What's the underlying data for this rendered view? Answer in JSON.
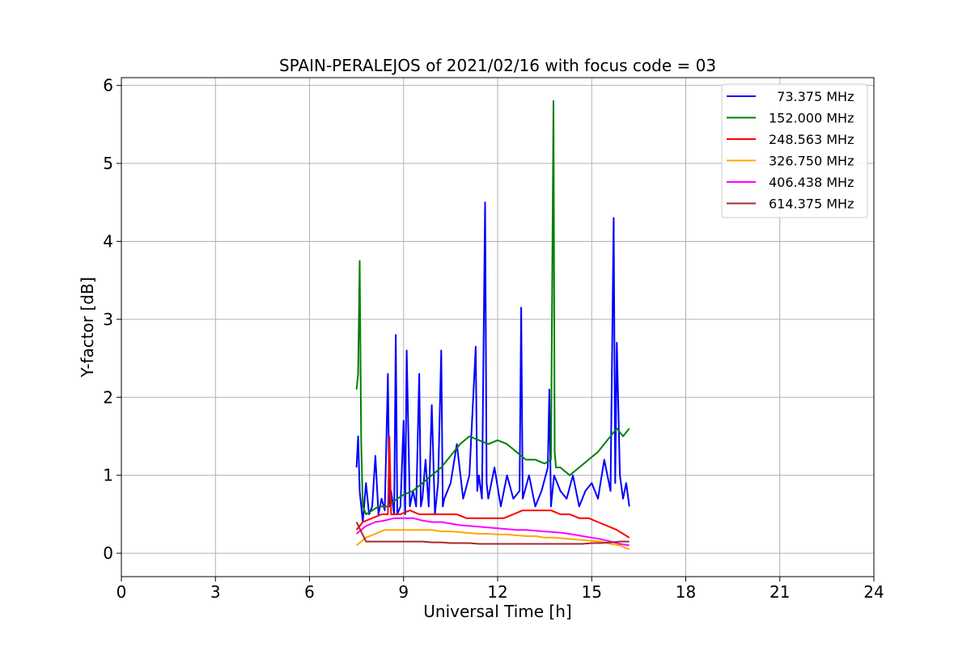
{
  "chart_data": {
    "type": "line",
    "title": "SPAIN-PERALEJOS of 2021/02/16 with focus code = 03",
    "xlabel": "Universal Time [h]",
    "ylabel": "Y-factor [dB]",
    "xlim": [
      0,
      24
    ],
    "ylim": [
      -0.3,
      6.1
    ],
    "xticks": [
      0,
      3,
      6,
      9,
      12,
      15,
      18,
      21,
      24
    ],
    "yticks": [
      0,
      1,
      2,
      3,
      4,
      5,
      6
    ],
    "grid": true,
    "legend_position": "top-right",
    "series": [
      {
        "name": "  73.375 MHz",
        "color": "#0000ff",
        "x": [
          7.5,
          7.55,
          7.6,
          7.7,
          7.8,
          7.9,
          8.0,
          8.1,
          8.2,
          8.3,
          8.4,
          8.5,
          8.55,
          8.6,
          8.7,
          8.75,
          8.8,
          8.9,
          9.0,
          9.05,
          9.1,
          9.2,
          9.3,
          9.4,
          9.5,
          9.55,
          9.6,
          9.7,
          9.8,
          9.9,
          10.0,
          10.1,
          10.2,
          10.25,
          10.3,
          10.5,
          10.7,
          10.9,
          11.1,
          11.3,
          11.35,
          11.4,
          11.5,
          11.6,
          11.65,
          11.7,
          11.9,
          12.1,
          12.3,
          12.5,
          12.7,
          12.75,
          12.8,
          13.0,
          13.2,
          13.4,
          13.6,
          13.65,
          13.7,
          13.8,
          14.0,
          14.2,
          14.4,
          14.6,
          14.8,
          15.0,
          15.2,
          15.4,
          15.6,
          15.7,
          15.75,
          15.8,
          15.9,
          16.0,
          16.1,
          16.2
        ],
        "values": [
          1.1,
          1.5,
          0.8,
          0.4,
          0.9,
          0.5,
          0.6,
          1.25,
          0.5,
          0.7,
          0.55,
          2.3,
          0.6,
          0.8,
          0.5,
          2.8,
          0.5,
          0.6,
          1.7,
          0.5,
          2.6,
          0.6,
          0.8,
          0.6,
          2.3,
          0.6,
          0.7,
          1.2,
          0.6,
          1.9,
          0.5,
          0.9,
          2.6,
          0.6,
          0.7,
          0.9,
          1.4,
          0.7,
          1.0,
          2.65,
          0.8,
          1.0,
          0.7,
          4.5,
          0.9,
          0.7,
          1.1,
          0.6,
          1.0,
          0.7,
          0.8,
          3.15,
          0.7,
          1.0,
          0.6,
          0.8,
          1.1,
          2.1,
          0.6,
          1.0,
          0.8,
          0.7,
          1.0,
          0.6,
          0.8,
          0.9,
          0.7,
          1.2,
          0.8,
          4.3,
          0.9,
          2.7,
          1.0,
          0.7,
          0.9,
          0.6
        ]
      },
      {
        "name": "152.000 MHz",
        "color": "#008000",
        "x": [
          7.5,
          7.55,
          7.6,
          7.65,
          7.7,
          7.8,
          8.0,
          8.2,
          8.5,
          8.8,
          9.0,
          9.3,
          9.6,
          9.9,
          10.2,
          10.5,
          10.8,
          11.1,
          11.4,
          11.7,
          12.0,
          12.3,
          12.6,
          12.9,
          13.2,
          13.5,
          13.7,
          13.78,
          13.82,
          13.86,
          14.0,
          14.3,
          14.6,
          14.9,
          15.2,
          15.5,
          15.8,
          16.0,
          16.2
        ],
        "values": [
          2.1,
          2.3,
          3.75,
          1.4,
          0.6,
          0.5,
          0.55,
          0.6,
          0.6,
          0.7,
          0.75,
          0.8,
          0.9,
          1.0,
          1.1,
          1.25,
          1.4,
          1.5,
          1.45,
          1.4,
          1.45,
          1.4,
          1.3,
          1.2,
          1.2,
          1.15,
          1.2,
          5.8,
          1.3,
          1.1,
          1.1,
          1.0,
          1.1,
          1.2,
          1.3,
          1.45,
          1.6,
          1.5,
          1.6
        ]
      },
      {
        "name": "248.563 MHz",
        "color": "#ff0000",
        "x": [
          7.5,
          7.7,
          8.0,
          8.3,
          8.5,
          8.55,
          8.6,
          8.9,
          9.2,
          9.5,
          9.8,
          10.1,
          10.4,
          10.7,
          11.0,
          11.3,
          11.6,
          11.9,
          12.2,
          12.5,
          12.8,
          13.1,
          13.4,
          13.7,
          14.0,
          14.3,
          14.6,
          14.9,
          15.2,
          15.5,
          15.8,
          16.0,
          16.2
        ],
        "values": [
          0.3,
          0.4,
          0.45,
          0.5,
          0.5,
          1.5,
          0.5,
          0.5,
          0.55,
          0.5,
          0.5,
          0.5,
          0.5,
          0.5,
          0.45,
          0.45,
          0.45,
          0.45,
          0.45,
          0.5,
          0.55,
          0.55,
          0.55,
          0.55,
          0.5,
          0.5,
          0.45,
          0.45,
          0.4,
          0.35,
          0.3,
          0.25,
          0.2
        ]
      },
      {
        "name": "326.750 MHz",
        "color": "#ffa500",
        "x": [
          7.5,
          7.8,
          8.1,
          8.4,
          8.7,
          9.0,
          9.3,
          9.6,
          9.9,
          10.2,
          10.5,
          10.8,
          11.1,
          11.4,
          11.7,
          12.0,
          12.3,
          12.6,
          12.9,
          13.2,
          13.5,
          13.8,
          14.1,
          14.4,
          14.7,
          15.0,
          15.3,
          15.6,
          15.9,
          16.2
        ],
        "values": [
          0.1,
          0.2,
          0.25,
          0.3,
          0.3,
          0.3,
          0.3,
          0.3,
          0.3,
          0.28,
          0.28,
          0.27,
          0.26,
          0.25,
          0.25,
          0.24,
          0.24,
          0.23,
          0.22,
          0.22,
          0.2,
          0.2,
          0.19,
          0.18,
          0.17,
          0.16,
          0.15,
          0.12,
          0.1,
          0.05
        ]
      },
      {
        "name": "406.438 MHz",
        "color": "#ff00ff",
        "x": [
          7.5,
          7.8,
          8.1,
          8.4,
          8.7,
          9.0,
          9.3,
          9.6,
          9.9,
          10.2,
          10.5,
          10.8,
          11.1,
          11.4,
          11.7,
          12.0,
          12.3,
          12.6,
          12.9,
          13.2,
          13.5,
          13.8,
          14.1,
          14.4,
          14.7,
          15.0,
          15.3,
          15.6,
          15.9,
          16.2
        ],
        "values": [
          0.25,
          0.35,
          0.4,
          0.42,
          0.45,
          0.45,
          0.45,
          0.42,
          0.4,
          0.4,
          0.38,
          0.36,
          0.35,
          0.34,
          0.33,
          0.32,
          0.31,
          0.3,
          0.3,
          0.29,
          0.28,
          0.27,
          0.26,
          0.24,
          0.22,
          0.2,
          0.18,
          0.15,
          0.12,
          0.1
        ]
      },
      {
        "name": "614.375 MHz",
        "color": "#a52a2a",
        "x": [
          7.5,
          7.8,
          8.1,
          8.4,
          8.7,
          9.0,
          9.3,
          9.6,
          9.9,
          10.2,
          10.5,
          10.8,
          11.1,
          11.4,
          11.7,
          12.0,
          12.3,
          12.6,
          12.9,
          13.2,
          13.5,
          13.8,
          14.1,
          14.4,
          14.7,
          15.0,
          15.3,
          15.6,
          15.9,
          16.2
        ],
        "values": [
          0.4,
          0.15,
          0.15,
          0.15,
          0.15,
          0.15,
          0.15,
          0.15,
          0.14,
          0.14,
          0.13,
          0.13,
          0.13,
          0.12,
          0.12,
          0.12,
          0.12,
          0.12,
          0.12,
          0.12,
          0.12,
          0.12,
          0.12,
          0.12,
          0.12,
          0.13,
          0.13,
          0.14,
          0.15,
          0.15
        ]
      }
    ]
  }
}
